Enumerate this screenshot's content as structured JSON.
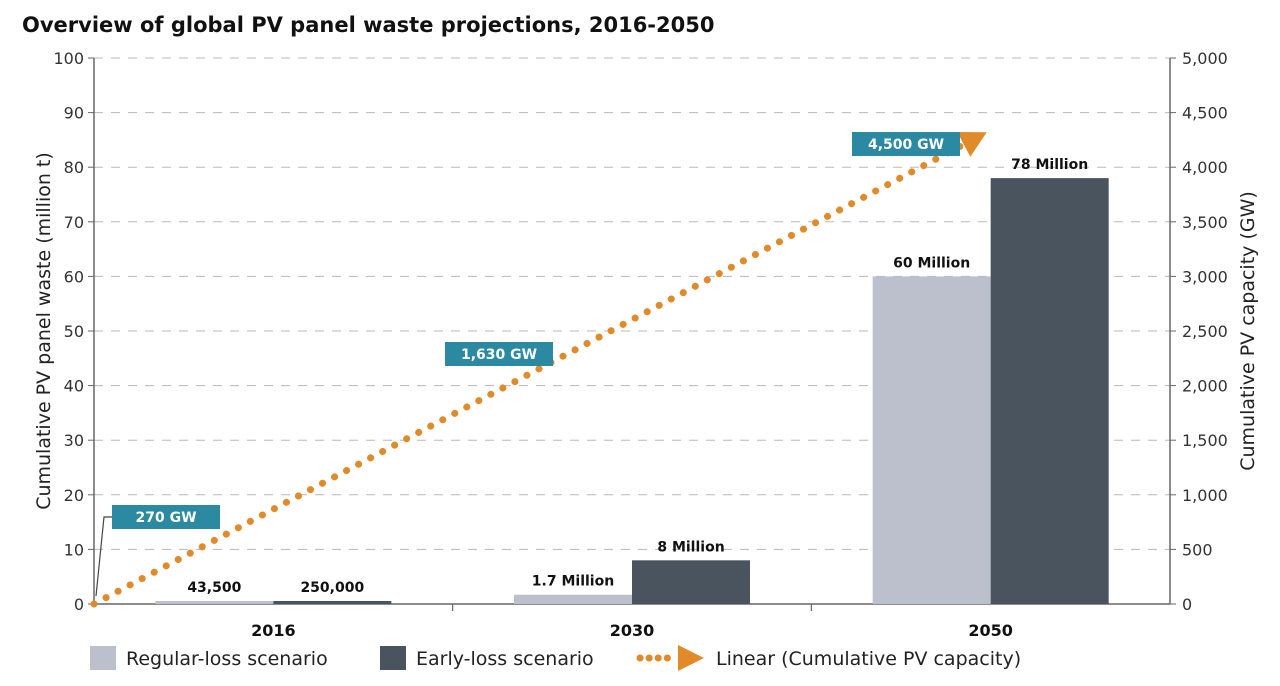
{
  "chart_data": {
    "type": "bar",
    "title": "Overview of global PV panel waste projections, 2016-2050",
    "categories": [
      "2016",
      "2030",
      "2050"
    ],
    "ylabel": "Cumulative PV panel waste (million t)",
    "y2label": "Cumulative PV capacity (GW)",
    "ylim": [
      0,
      100
    ],
    "y2lim": [
      0,
      5000
    ],
    "yticks": [
      "0",
      "10",
      "20",
      "30",
      "40",
      "50",
      "60",
      "70",
      "80",
      "90",
      "100"
    ],
    "y2ticks": [
      "0",
      "500",
      "1,000",
      "1,500",
      "2,000",
      "2,500",
      "3,000",
      "3,500",
      "4,000",
      "4,500",
      "5,000"
    ],
    "grid": true,
    "legend_position": "bottom",
    "series": [
      {
        "name": "Regular-loss scenario",
        "color": "#bcc0cc",
        "values": [
          0.0435,
          1.7,
          60
        ],
        "labels": [
          "43,500",
          "1.7 Million",
          "60 Million"
        ]
      },
      {
        "name": "Early-loss scenario",
        "color": "#4a545e",
        "values": [
          0.25,
          8,
          78
        ],
        "labels": [
          "250,000",
          "8 Million",
          "78 Million"
        ]
      }
    ],
    "line_series": {
      "name": "Linear (Cumulative PV capacity)",
      "color": "#e08a2a",
      "axis": "right",
      "start_value": 0,
      "end_value": 4200,
      "callouts": [
        {
          "label": "270 GW",
          "value": 270
        },
        {
          "label": "1,630 GW",
          "value": 1630
        },
        {
          "label": "4,500 GW",
          "value": 4500
        }
      ]
    },
    "callout_color": "#2b8aa2"
  }
}
